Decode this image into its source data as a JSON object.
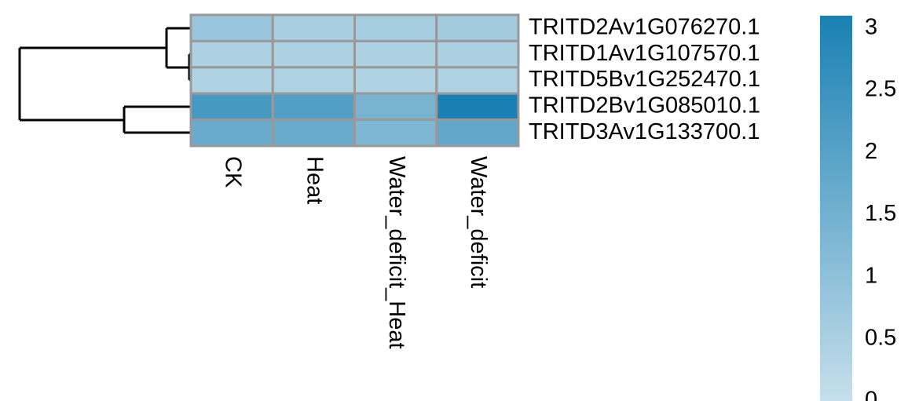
{
  "chart_data": {
    "type": "heatmap",
    "x_categories": [
      "CK",
      "Heat",
      "Water_deficit_Heat",
      "Water_deficit"
    ],
    "y_categories": [
      "TRITD2Av1G076270.1",
      "TRITD1Av1G107570.1",
      "TRITD5Bv1G252470.1",
      "TRITD2Bv1G085010.1",
      "TRITD3Av1G133700.1"
    ],
    "values": [
      [
        0.8,
        0.55,
        0.6,
        0.65
      ],
      [
        0.45,
        0.45,
        0.45,
        0.5
      ],
      [
        0.4,
        0.42,
        0.4,
        0.42
      ],
      [
        2.3,
        2.1,
        1.4,
        3.1
      ],
      [
        1.7,
        1.7,
        1.3,
        1.8
      ]
    ],
    "colors": [
      "#c6dfeb",
      "#1a80b3"
    ],
    "clim": [
      0,
      3.1
    ],
    "cticks": [
      0,
      0.5,
      1,
      1.5,
      2,
      2.5,
      3
    ]
  }
}
